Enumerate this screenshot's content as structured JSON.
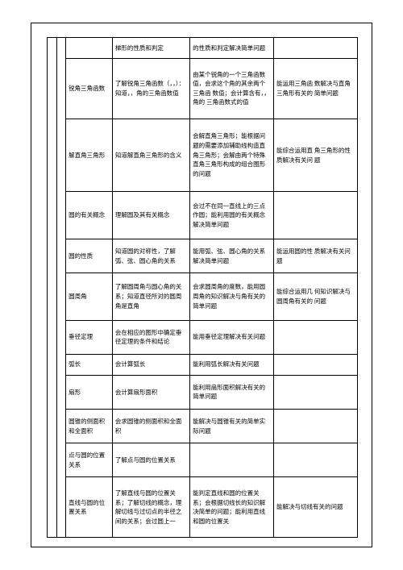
{
  "rows": [
    {
      "c2": "",
      "c3": "梯形的性质和判定",
      "c4": "的性质和判定解决简单问题",
      "c5": ""
    },
    {
      "c2": "锐角三角函数",
      "c3": "了解锐角三角函数（，，）：知道，，角的三角函数值",
      "c4": "由某个锐角的一个三角函数值，会求这个角的其余两个三角函 数值；会计算含有，，角的 三角函数式的值",
      "c5": "能运用三角函 数解决与直角 三角形有关的 简单问题"
    },
    {
      "c2": "解直角三角形",
      "c3": "知道解直角三角形的含义",
      "c4": "会解直角三角形；能根据问题的需要添加辅助线构造直角三角形；会解由两个特殊直角三角形构成的组合图形的问题",
      "c5": "能综合运用直 角三角形的性 质解决有关问 题"
    },
    {
      "c2": "圆的有关概念",
      "c3": "理解圆及其有关概念",
      "c4": "会过不在同一直线上的三点作圆；能利用圆的有关概念解决简单问题",
      "c5": ""
    },
    {
      "c2": "圆的性质",
      "c3": "知道圆的对称性，了解弧、弦、圆心角的关系",
      "c4": "能用弧、弦、圆心角的关系解决简单问题",
      "c5": "能运用圆的性 质解决有关问 题"
    },
    {
      "c2": "圆周角",
      "c3": "了解圆周角与圆心角的关系；知道直径所对的圆周角是直角",
      "c4": "会求圆周角的度数，能用圆周角的知识解决与角有关的简单问题",
      "c5": "能综合运用几 何知识解决与 圆周角有关的 问题"
    },
    {
      "c2": "垂径定理",
      "c3": "会在相应的图形中确定垂径定理的条件和结论",
      "c4": "能用垂径定理解决有关问题",
      "c5": ""
    },
    {
      "c2": "弧长",
      "c3": "会计算弧长",
      "c4": "能利用弧长解决有关问题",
      "c5": ""
    },
    {
      "c2": "扇形",
      "c3": "会计算扇形面积",
      "c4": "能利用扇形面积解决有关的简单问题",
      "c5": ""
    },
    {
      "c2": "圆锥的侧面积和全面积",
      "c3": "会求圆锥的侧面积和全面积",
      "c4": "能解决与圆锥有关的简单实际问题",
      "c5": ""
    },
    {
      "c2": "点与圆的位置关系",
      "c3": "了解点与圆的位置关系",
      "c4": "",
      "c5": ""
    },
    {
      "c2": "直线与圆的位置关系",
      "c3": "了解直线与圆的位置关系；了解切线的概念，理解切线与过切点的半径之间的关系；会过圆上一",
      "c4": "能判定直线和圆的位置关系；会根据切线长的知识解决简单的问题；能利用直线和圆的位置关",
      "c5": "能解决与切线有关的问题"
    }
  ]
}
